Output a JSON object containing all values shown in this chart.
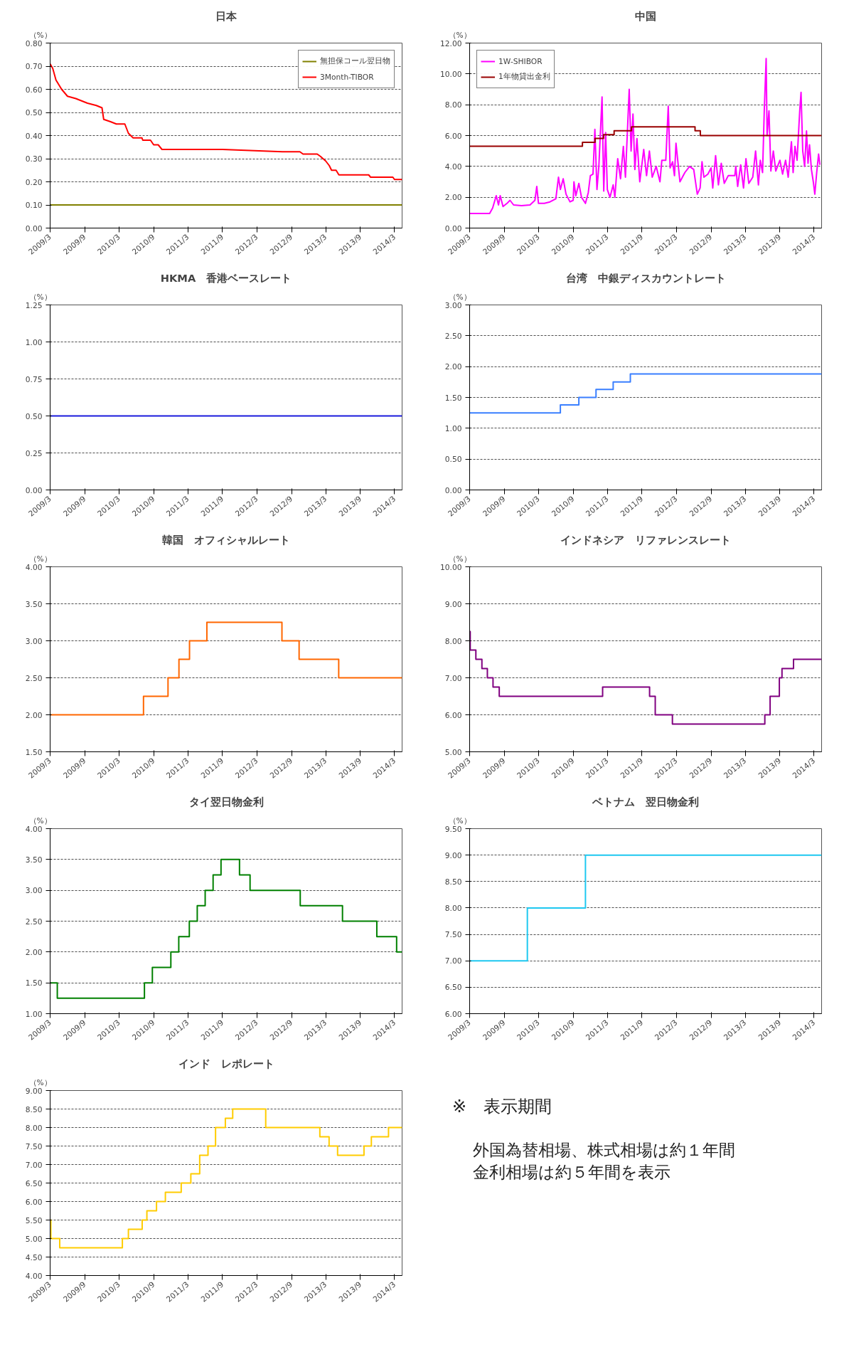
{
  "chart_data": [
    {
      "type": "line",
      "title": "日本",
      "ylabel": "（%）",
      "legend": "top right",
      "grid": "y",
      "xlim": [
        "2009-03-01",
        "2014-04-10"
      ],
      "xticks": [
        {
          "value": "2009-03",
          "label": "2009/3"
        },
        {
          "value": "2009-09",
          "label": "2009/9"
        },
        {
          "value": "2010-03",
          "label": "2010/3"
        },
        {
          "value": "2010-09",
          "label": "2010/9"
        },
        {
          "value": "2011-03",
          "label": "2011/3"
        },
        {
          "value": "2011-09",
          "label": "2011/9"
        },
        {
          "value": "2012-03",
          "label": "2012/3"
        },
        {
          "value": "2012-09",
          "label": "2012/9"
        },
        {
          "value": "2013-03",
          "label": "2013/3"
        },
        {
          "value": "2013-09",
          "label": "2013/9"
        },
        {
          "value": "2014-03",
          "label": "2014/3"
        }
      ],
      "ylim": [
        0,
        0.8
      ],
      "yticks": [
        {
          "value": 0,
          "label": "0.00"
        },
        {
          "value": 0.1,
          "label": "0.10"
        },
        {
          "value": 0.2,
          "label": "0.20"
        },
        {
          "value": 0.3,
          "label": "0.30"
        },
        {
          "value": 0.4,
          "label": "0.40"
        },
        {
          "value": 0.5,
          "label": "0.50"
        },
        {
          "value": 0.6,
          "label": "0.60"
        },
        {
          "value": 0.7,
          "label": "0.70"
        },
        {
          "value": 0.8,
          "label": "0.80"
        }
      ],
      "series": [
        {
          "name": "無担保コール翌日物",
          "color": "#808000",
          "x": [
            "2009-03-01",
            "2014-04-10"
          ],
          "values": [
            0.1,
            0.1
          ]
        },
        {
          "name": "3Month-TIBOR",
          "color": "#ff0000",
          "x": [
            "2009-03-01",
            "2009-03-15",
            "2009-04-01",
            "2009-05-01",
            "2009-06-01",
            "2009-07-15",
            "2009-08-15",
            "2009-09-15",
            "2009-11-01",
            "2009-12-01",
            "2009-12-10",
            "2010-01-15",
            "2010-02-15",
            "2010-04-01",
            "2010-04-20",
            "2010-05-15",
            "2010-07-01",
            "2010-07-05",
            "2010-08-15",
            "2010-09-01",
            "2010-09-25",
            "2010-10-15",
            "2011-09-01",
            "2012-07-15",
            "2012-10-15",
            "2012-11-01",
            "2013-01-15",
            "2013-02-01",
            "2013-03-01",
            "2013-03-20",
            "2013-04-01",
            "2013-04-25",
            "2013-05-10",
            "2013-10-15",
            "2013-10-25",
            "2014-02-20",
            "2014-03-01",
            "2014-04-10"
          ],
          "values": [
            0.71,
            0.69,
            0.64,
            0.6,
            0.57,
            0.56,
            0.55,
            0.54,
            0.53,
            0.52,
            0.47,
            0.46,
            0.45,
            0.45,
            0.41,
            0.39,
            0.39,
            0.38,
            0.38,
            0.36,
            0.36,
            0.34,
            0.34,
            0.33,
            0.33,
            0.32,
            0.32,
            0.31,
            0.29,
            0.27,
            0.25,
            0.25,
            0.23,
            0.23,
            0.22,
            0.22,
            0.21,
            0.21
          ]
        }
      ]
    },
    {
      "type": "line",
      "title": "中国",
      "ylabel": "（%）",
      "legend": "top left",
      "grid": "y",
      "xlim": [
        "2009-03-01",
        "2014-04-10"
      ],
      "xticks": [
        {
          "value": "2009-03",
          "label": "2009/3"
        },
        {
          "value": "2009-09",
          "label": "2009/9"
        },
        {
          "value": "2010-03",
          "label": "2010/3"
        },
        {
          "value": "2010-09",
          "label": "2010/9"
        },
        {
          "value": "2011-03",
          "label": "2011/3"
        },
        {
          "value": "2011-09",
          "label": "2011/9"
        },
        {
          "value": "2012-03",
          "label": "2012/3"
        },
        {
          "value": "2012-09",
          "label": "2012/9"
        },
        {
          "value": "2013-03",
          "label": "2013/3"
        },
        {
          "value": "2013-09",
          "label": "2013/9"
        },
        {
          "value": "2014-03",
          "label": "2014/3"
        }
      ],
      "ylim": [
        0,
        12
      ],
      "yticks": [
        {
          "value": 0,
          "label": "0.00"
        },
        {
          "value": 2,
          "label": "2.00"
        },
        {
          "value": 4,
          "label": "4.00"
        },
        {
          "value": 6,
          "label": "6.00"
        },
        {
          "value": 8,
          "label": "8.00"
        },
        {
          "value": 10,
          "label": "10.00"
        },
        {
          "value": 12,
          "label": "12.00"
        }
      ],
      "series": [
        {
          "name": "1W-SHIBOR",
          "color": "#ff00ff",
          "x": [
            "2009-03-01",
            "2009-06-15",
            "2009-07-01",
            "2009-07-20",
            "2009-08-01",
            "2009-08-10",
            "2009-08-25",
            "2009-09-15",
            "2009-10-01",
            "2009-10-20",
            "2009-12-01",
            "2010-01-15",
            "2010-02-10",
            "2010-02-20",
            "2010-03-01",
            "2010-04-01",
            "2010-05-01",
            "2010-06-01",
            "2010-06-15",
            "2010-06-25",
            "2010-07-10",
            "2010-07-25",
            "2010-08-15",
            "2010-09-01",
            "2010-09-05",
            "2010-09-15",
            "2010-10-01",
            "2010-10-15",
            "2010-11-05",
            "2010-11-20",
            "2010-12-01",
            "2010-12-15",
            "2010-12-25",
            "2011-01-05",
            "2011-01-15",
            "2011-02-01",
            "2011-02-10",
            "2011-02-20",
            "2011-03-01",
            "2011-03-15",
            "2011-04-01",
            "2011-04-10",
            "2011-04-25",
            "2011-05-10",
            "2011-05-25",
            "2011-06-05",
            "2011-06-25",
            "2011-07-05",
            "2011-07-15",
            "2011-07-25",
            "2011-08-05",
            "2011-08-20",
            "2011-09-10",
            "2011-09-25",
            "2011-10-10",
            "2011-10-25",
            "2011-11-15",
            "2011-12-05",
            "2011-12-15",
            "2012-01-05",
            "2012-01-18",
            "2012-01-28",
            "2012-02-10",
            "2012-02-20",
            "2012-02-28",
            "2012-03-20",
            "2012-04-15",
            "2012-05-10",
            "2012-06-01",
            "2012-06-20",
            "2012-07-05",
            "2012-07-15",
            "2012-07-25",
            "2012-08-15",
            "2012-09-01",
            "2012-09-10",
            "2012-09-25",
            "2012-10-10",
            "2012-10-25",
            "2012-11-10",
            "2012-12-01",
            "2013-01-05",
            "2013-01-10",
            "2013-01-20",
            "2013-02-05",
            "2013-02-20",
            "2013-03-05",
            "2013-03-20",
            "2013-04-10",
            "2013-04-25",
            "2013-05-10",
            "2013-05-20",
            "2013-06-01",
            "2013-06-10",
            "2013-06-20",
            "2013-06-25",
            "2013-07-05",
            "2013-07-15",
            "2013-07-28",
            "2013-08-10",
            "2013-09-01",
            "2013-09-15",
            "2013-10-01",
            "2013-10-15",
            "2013-11-01",
            "2013-11-10",
            "2013-11-20",
            "2013-12-01",
            "2013-12-15",
            "2013-12-22",
            "2013-12-31",
            "2014-01-10",
            "2014-01-20",
            "2014-01-28",
            "2014-02-05",
            "2014-02-15",
            "2014-02-25",
            "2014-03-05",
            "2014-03-15",
            "2014-03-25",
            "2014-04-01"
          ],
          "values": [
            0.95,
            0.95,
            1.3,
            2.1,
            1.5,
            2.1,
            1.4,
            1.6,
            1.8,
            1.5,
            1.45,
            1.5,
            1.8,
            2.7,
            1.6,
            1.6,
            1.7,
            1.9,
            3.3,
            2.5,
            3.2,
            2.2,
            1.7,
            1.8,
            3.0,
            2.1,
            2.9,
            2.0,
            1.6,
            2.3,
            3.4,
            3.5,
            6.4,
            2.5,
            4.0,
            8.5,
            2.4,
            6.2,
            2.5,
            2.0,
            2.8,
            2.0,
            4.5,
            3.2,
            5.3,
            3.3,
            9.0,
            5.0,
            7.4,
            3.8,
            5.8,
            3.0,
            5.1,
            3.4,
            5.0,
            3.3,
            4.0,
            3.0,
            4.4,
            4.4,
            7.9,
            3.9,
            4.3,
            3.4,
            5.5,
            3.0,
            3.6,
            4.0,
            3.8,
            2.2,
            2.6,
            4.3,
            3.3,
            3.5,
            3.9,
            2.6,
            4.7,
            2.8,
            4.2,
            2.9,
            3.4,
            3.4,
            4.0,
            2.7,
            4.1,
            2.6,
            4.5,
            2.9,
            3.3,
            5.0,
            2.8,
            4.4,
            3.6,
            7.6,
            11.0,
            6.0,
            7.6,
            3.7,
            5.0,
            3.7,
            4.4,
            3.5,
            4.4,
            3.3,
            5.6,
            3.6,
            5.3,
            4.4,
            7.6,
            8.8,
            5.0,
            4.0,
            6.3,
            4.2,
            5.4,
            3.8,
            3.0,
            2.2,
            3.6,
            4.8,
            4.1
          ]
        },
        {
          "name": "1年物貸出金利",
          "color": "#990000",
          "type": "step",
          "x": [
            "2009-03-01",
            "2010-10-20",
            "2010-12-26",
            "2011-02-09",
            "2011-04-06",
            "2011-07-07",
            "2012-06-08",
            "2012-07-06",
            "2014-04-10"
          ],
          "values": [
            5.31,
            5.56,
            5.81,
            6.06,
            6.31,
            6.56,
            6.31,
            6.0,
            6.0
          ]
        }
      ]
    },
    {
      "type": "step",
      "title": "HKMA　香港ベースレート",
      "ylabel": "（%）",
      "grid": "y",
      "xlim": [
        "2009-03-01",
        "2014-04-10"
      ],
      "xticks": [
        {
          "value": "2009-03",
          "label": "2009/3"
        },
        {
          "value": "2009-09",
          "label": "2009/9"
        },
        {
          "value": "2010-03",
          "label": "2010/3"
        },
        {
          "value": "2010-09",
          "label": "2010/9"
        },
        {
          "value": "2011-03",
          "label": "2011/3"
        },
        {
          "value": "2011-09",
          "label": "2011/9"
        },
        {
          "value": "2012-03",
          "label": "2012/3"
        },
        {
          "value": "2012-09",
          "label": "2012/9"
        },
        {
          "value": "2013-03",
          "label": "2013/3"
        },
        {
          "value": "2013-09",
          "label": "2013/9"
        },
        {
          "value": "2014-03",
          "label": "2014/3"
        }
      ],
      "ylim": [
        0,
        1.25
      ],
      "yticks": [
        {
          "value": 0,
          "label": "0.00"
        },
        {
          "value": 0.25,
          "label": "0.25"
        },
        {
          "value": 0.5,
          "label": "0.50"
        },
        {
          "value": 0.75,
          "label": "0.75"
        },
        {
          "value": 1,
          "label": "1.00"
        },
        {
          "value": 1.25,
          "label": "1.25"
        }
      ],
      "series": [
        {
          "color": "#1a1adc",
          "x": [
            "2009-03-01",
            "2014-04-10"
          ],
          "values": [
            0.5,
            0.5
          ]
        }
      ]
    },
    {
      "type": "step",
      "title": "台湾　中銀ディスカウントレート",
      "ylabel": "（%）",
      "grid": "y",
      "xlim": [
        "2009-03-01",
        "2014-04-10"
      ],
      "xticks": [
        {
          "value": "2009-03",
          "label": "2009/3"
        },
        {
          "value": "2009-09",
          "label": "2009/9"
        },
        {
          "value": "2010-03",
          "label": "2010/3"
        },
        {
          "value": "2010-09",
          "label": "2010/9"
        },
        {
          "value": "2011-03",
          "label": "2011/3"
        },
        {
          "value": "2011-09",
          "label": "2011/9"
        },
        {
          "value": "2012-03",
          "label": "2012/3"
        },
        {
          "value": "2012-09",
          "label": "2012/9"
        },
        {
          "value": "2013-03",
          "label": "2013/3"
        },
        {
          "value": "2013-09",
          "label": "2013/9"
        },
        {
          "value": "2014-03",
          "label": "2014/3"
        }
      ],
      "ylim": [
        0,
        3
      ],
      "yticks": [
        {
          "value": 0,
          "label": "0.00"
        },
        {
          "value": 0.5,
          "label": "0.50"
        },
        {
          "value": 1,
          "label": "1.00"
        },
        {
          "value": 1.5,
          "label": "1.50"
        },
        {
          "value": 2,
          "label": "2.00"
        },
        {
          "value": 2.5,
          "label": "2.50"
        },
        {
          "value": 3,
          "label": "3.00"
        }
      ],
      "series": [
        {
          "color": "#3a7fff",
          "x": [
            "2009-03-01",
            "2010-06-25",
            "2010-10-01",
            "2010-12-31",
            "2011-04-01",
            "2011-07-01",
            "2014-04-10"
          ],
          "values": [
            1.25,
            1.38,
            1.5,
            1.63,
            1.75,
            1.88,
            1.88
          ]
        }
      ]
    },
    {
      "type": "step",
      "title": "韓国　オフィシャルレート",
      "ylabel": "（%）",
      "grid": "y",
      "xlim": [
        "2009-03-01",
        "2014-04-10"
      ],
      "xticks": [
        {
          "value": "2009-03",
          "label": "2009/3"
        },
        {
          "value": "2009-09",
          "label": "2009/9"
        },
        {
          "value": "2010-03",
          "label": "2010/3"
        },
        {
          "value": "2010-09",
          "label": "2010/9"
        },
        {
          "value": "2011-03",
          "label": "2011/3"
        },
        {
          "value": "2011-09",
          "label": "2011/9"
        },
        {
          "value": "2012-03",
          "label": "2012/3"
        },
        {
          "value": "2012-09",
          "label": "2012/9"
        },
        {
          "value": "2013-03",
          "label": "2013/3"
        },
        {
          "value": "2013-09",
          "label": "2013/9"
        },
        {
          "value": "2014-03",
          "label": "2014/3"
        }
      ],
      "ylim": [
        1.5,
        4
      ],
      "yticks": [
        {
          "value": 1.5,
          "label": "1.50"
        },
        {
          "value": 2,
          "label": "2.00"
        },
        {
          "value": 2.5,
          "label": "2.50"
        },
        {
          "value": 3,
          "label": "3.00"
        },
        {
          "value": 3.5,
          "label": "3.50"
        },
        {
          "value": 4,
          "label": "4.00"
        }
      ],
      "series": [
        {
          "color": "#ff6600",
          "x": [
            "2009-03-01",
            "2010-07-09",
            "2010-11-16",
            "2011-01-13",
            "2011-03-10",
            "2011-06-10",
            "2012-07-12",
            "2012-10-11",
            "2013-05-09",
            "2014-04-10"
          ],
          "values": [
            2.0,
            2.25,
            2.5,
            2.75,
            3.0,
            3.25,
            3.0,
            2.75,
            2.5,
            2.5
          ]
        }
      ]
    },
    {
      "type": "step",
      "title": "インドネシア　リファレンスレート",
      "ylabel": "（%）",
      "grid": "y",
      "xlim": [
        "2009-03-01",
        "2014-04-10"
      ],
      "xticks": [
        {
          "value": "2009-03",
          "label": "2009/3"
        },
        {
          "value": "2009-09",
          "label": "2009/9"
        },
        {
          "value": "2010-03",
          "label": "2010/3"
        },
        {
          "value": "2010-09",
          "label": "2010/9"
        },
        {
          "value": "2011-03",
          "label": "2011/3"
        },
        {
          "value": "2011-09",
          "label": "2011/9"
        },
        {
          "value": "2012-03",
          "label": "2012/3"
        },
        {
          "value": "2012-09",
          "label": "2012/9"
        },
        {
          "value": "2013-03",
          "label": "2013/3"
        },
        {
          "value": "2013-09",
          "label": "2013/9"
        },
        {
          "value": "2014-03",
          "label": "2014/3"
        }
      ],
      "ylim": [
        5,
        10
      ],
      "yticks": [
        {
          "value": 5,
          "label": "5.00"
        },
        {
          "value": 6,
          "label": "6.00"
        },
        {
          "value": 7,
          "label": "7.00"
        },
        {
          "value": 8,
          "label": "8.00"
        },
        {
          "value": 9,
          "label": "9.00"
        },
        {
          "value": 10,
          "label": "10.00"
        }
      ],
      "series": [
        {
          "color": "#800080",
          "x": [
            "2009-03-01",
            "2009-03-04",
            "2009-04-03",
            "2009-05-05",
            "2009-06-03",
            "2009-07-03",
            "2009-08-05",
            "2011-02-04",
            "2011-10-11",
            "2011-11-10",
            "2012-02-09",
            "2013-06-13",
            "2013-07-11",
            "2013-08-29",
            "2013-09-12",
            "2013-11-12",
            "2014-04-10"
          ],
          "values": [
            8.25,
            7.75,
            7.5,
            7.25,
            7.0,
            6.75,
            6.5,
            6.75,
            6.5,
            6.0,
            5.75,
            6.0,
            6.5,
            7.0,
            7.25,
            7.5,
            7.5
          ]
        }
      ]
    },
    {
      "type": "step",
      "title": "タイ翌日物金利",
      "ylabel": "（%）",
      "grid": "y",
      "xlim": [
        "2009-03-01",
        "2014-04-10"
      ],
      "xticks": [
        {
          "value": "2009-03",
          "label": "2009/3"
        },
        {
          "value": "2009-09",
          "label": "2009/9"
        },
        {
          "value": "2010-03",
          "label": "2010/3"
        },
        {
          "value": "2010-09",
          "label": "2010/9"
        },
        {
          "value": "2011-03",
          "label": "2011/3"
        },
        {
          "value": "2011-09",
          "label": "2011/9"
        },
        {
          "value": "2012-03",
          "label": "2012/3"
        },
        {
          "value": "2012-09",
          "label": "2012/9"
        },
        {
          "value": "2013-03",
          "label": "2013/3"
        },
        {
          "value": "2013-09",
          "label": "2013/9"
        },
        {
          "value": "2014-03",
          "label": "2014/3"
        }
      ],
      "ylim": [
        1,
        4
      ],
      "yticks": [
        {
          "value": 1,
          "label": "1.00"
        },
        {
          "value": 1.5,
          "label": "1.50"
        },
        {
          "value": 2,
          "label": "2.00"
        },
        {
          "value": 2.5,
          "label": "2.50"
        },
        {
          "value": 3,
          "label": "3.00"
        },
        {
          "value": 3.5,
          "label": "3.50"
        },
        {
          "value": 4,
          "label": "4.00"
        }
      ],
      "series": [
        {
          "color": "#008000",
          "x": [
            "2009-03-01",
            "2009-04-08",
            "2010-07-14",
            "2010-08-25",
            "2010-12-01",
            "2011-01-12",
            "2011-03-09",
            "2011-04-20",
            "2011-06-01",
            "2011-07-13",
            "2011-08-24",
            "2011-11-30",
            "2012-01-25",
            "2012-10-17",
            "2013-05-29",
            "2013-11-27",
            "2014-03-12",
            "2014-04-10"
          ],
          "values": [
            1.5,
            1.25,
            1.5,
            1.75,
            2.0,
            2.25,
            2.5,
            2.75,
            3.0,
            3.25,
            3.5,
            3.25,
            3.0,
            2.75,
            2.5,
            2.25,
            2.0,
            2.0
          ]
        }
      ]
    },
    {
      "type": "step",
      "title": "ベトナム　翌日物金利",
      "ylabel": "（%）",
      "grid": "y",
      "xlim": [
        "2009-03-01",
        "2014-04-10"
      ],
      "xticks": [
        {
          "value": "2009-03",
          "label": "2009/3"
        },
        {
          "value": "2009-09",
          "label": "2009/9"
        },
        {
          "value": "2010-03",
          "label": "2010/3"
        },
        {
          "value": "2010-09",
          "label": "2010/9"
        },
        {
          "value": "2011-03",
          "label": "2011/3"
        },
        {
          "value": "2011-09",
          "label": "2011/9"
        },
        {
          "value": "2012-03",
          "label": "2012/3"
        },
        {
          "value": "2012-09",
          "label": "2012/9"
        },
        {
          "value": "2013-03",
          "label": "2013/3"
        },
        {
          "value": "2013-09",
          "label": "2013/9"
        },
        {
          "value": "2014-03",
          "label": "2014/3"
        }
      ],
      "ylim": [
        6,
        9.5
      ],
      "yticks": [
        {
          "value": 6,
          "label": "6.00"
        },
        {
          "value": 6.5,
          "label": "6.50"
        },
        {
          "value": 7,
          "label": "7.00"
        },
        {
          "value": 7.5,
          "label": "7.50"
        },
        {
          "value": 8,
          "label": "8.00"
        },
        {
          "value": 8.5,
          "label": "8.50"
        },
        {
          "value": 9,
          "label": "9.00"
        },
        {
          "value": 9.5,
          "label": "9.50"
        }
      ],
      "series": [
        {
          "color": "#1ec8f0",
          "x": [
            "2009-03-01",
            "2010-01-01",
            "2010-11-05",
            "2014-04-10"
          ],
          "values": [
            7.0,
            8.0,
            9.0,
            9.0
          ]
        }
      ]
    },
    {
      "type": "step",
      "title": "インド　レポレート",
      "ylabel": "（%）",
      "grid": "y",
      "xlim": [
        "2009-03-01",
        "2014-04-10"
      ],
      "xticks": [
        {
          "value": "2009-03",
          "label": "2009/3"
        },
        {
          "value": "2009-09",
          "label": "2009/9"
        },
        {
          "value": "2010-03",
          "label": "2010/3"
        },
        {
          "value": "2010-09",
          "label": "2010/9"
        },
        {
          "value": "2011-03",
          "label": "2011/3"
        },
        {
          "value": "2011-09",
          "label": "2011/9"
        },
        {
          "value": "2012-03",
          "label": "2012/3"
        },
        {
          "value": "2012-09",
          "label": "2012/9"
        },
        {
          "value": "2013-03",
          "label": "2013/3"
        },
        {
          "value": "2013-09",
          "label": "2013/9"
        },
        {
          "value": "2014-03",
          "label": "2014/3"
        }
      ],
      "ylim": [
        4,
        9
      ],
      "yticks": [
        {
          "value": 4,
          "label": "4.00"
        },
        {
          "value": 4.5,
          "label": "4.50"
        },
        {
          "value": 5,
          "label": "5.00"
        },
        {
          "value": 5.5,
          "label": "5.50"
        },
        {
          "value": 6,
          "label": "6.00"
        },
        {
          "value": 6.5,
          "label": "6.50"
        },
        {
          "value": 7,
          "label": "7.00"
        },
        {
          "value": 7.5,
          "label": "7.50"
        },
        {
          "value": 8,
          "label": "8.00"
        },
        {
          "value": 8.5,
          "label": "8.50"
        },
        {
          "value": 9,
          "label": "9.00"
        }
      ],
      "series": [
        {
          "color": "#ffcc00",
          "x": [
            "2009-03-01",
            "2009-03-05",
            "2009-04-21",
            "2010-03-19",
            "2010-04-20",
            "2010-07-02",
            "2010-07-27",
            "2010-09-16",
            "2010-11-02",
            "2011-01-25",
            "2011-03-17",
            "2011-05-03",
            "2011-06-16",
            "2011-07-26",
            "2011-09-16",
            "2011-10-25",
            "2012-04-17",
            "2013-01-29",
            "2013-03-19",
            "2013-05-03",
            "2013-09-20",
            "2013-10-29",
            "2014-01-28",
            "2014-04-10"
          ],
          "values": [
            5.5,
            5.0,
            4.75,
            5.0,
            5.25,
            5.5,
            5.75,
            6.0,
            6.25,
            6.5,
            6.75,
            7.25,
            7.5,
            8.0,
            8.25,
            8.5,
            8.0,
            7.75,
            7.5,
            7.25,
            7.5,
            7.75,
            8.0,
            8.0
          ]
        }
      ]
    },
    {
      "type": "other",
      "annotations": [
        "※　表示期間",
        "外国為替相場、株式相場は約１年間",
        "金利相場は約５年間を表示"
      ]
    }
  ]
}
